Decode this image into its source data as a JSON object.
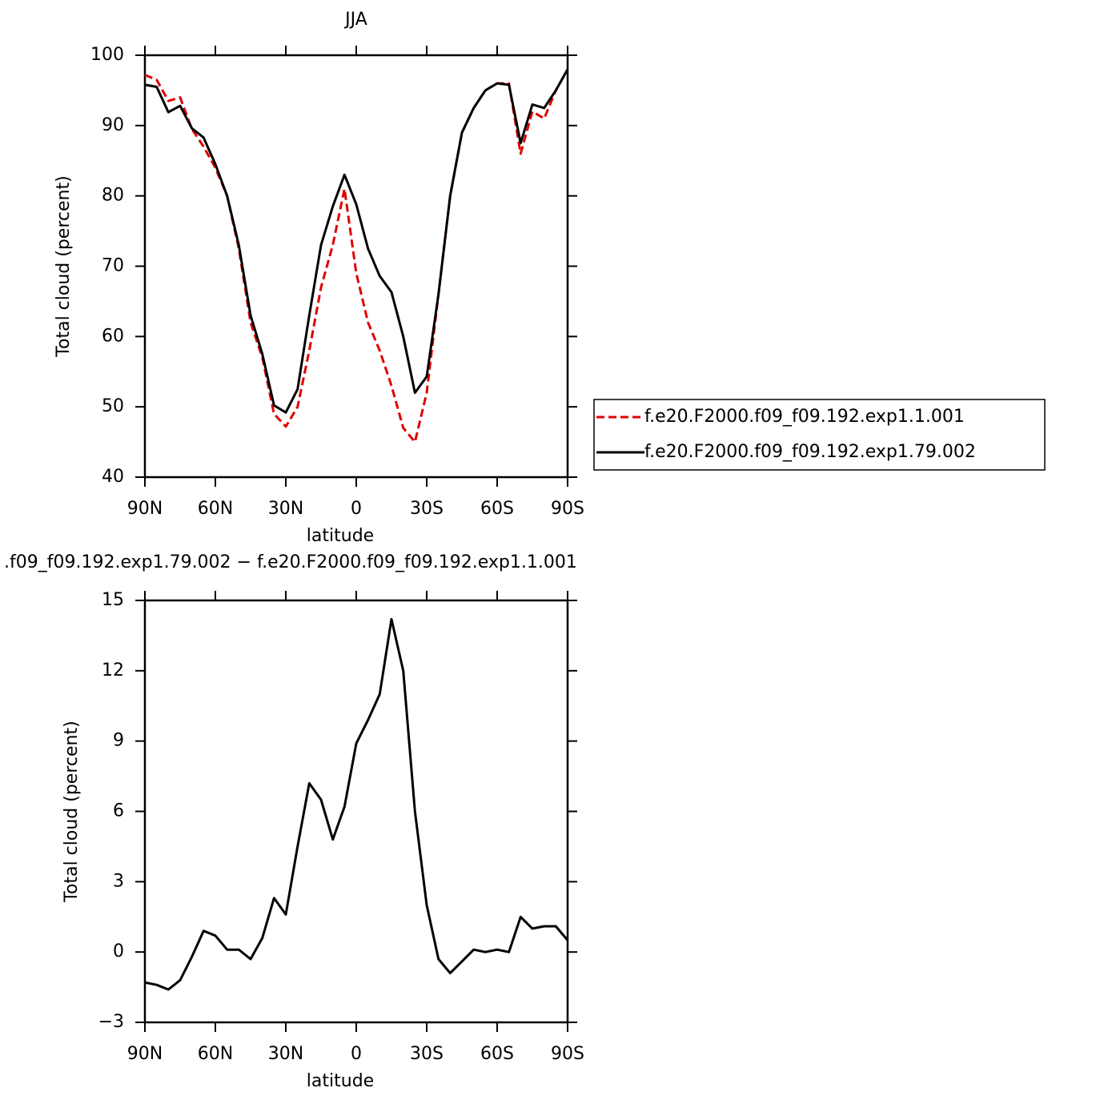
{
  "chart_data": [
    {
      "type": "line",
      "title": "JJA",
      "xlabel": "latitude",
      "ylabel": "Total cloud (percent)",
      "x": [
        90,
        85,
        80,
        75,
        70,
        65,
        60,
        55,
        50,
        45,
        40,
        35,
        30,
        25,
        20,
        15,
        10,
        5,
        0,
        -5,
        -10,
        -15,
        -20,
        -25,
        -30,
        -35,
        -40,
        -45,
        -50,
        -55,
        -60,
        -65,
        -70,
        -75,
        -80,
        -85,
        -90
      ],
      "xlim": [
        90,
        -90
      ],
      "xticks": [
        {
          "value": 90,
          "label": "90N"
        },
        {
          "value": 60,
          "label": "60N"
        },
        {
          "value": 30,
          "label": "30N"
        },
        0,
        {
          "value": -30,
          "label": "30S"
        },
        {
          "value": -60,
          "label": "60S"
        },
        {
          "value": -90,
          "label": "90S"
        }
      ],
      "ylim": [
        40,
        100
      ],
      "yticks": [
        40,
        50,
        60,
        70,
        80,
        90,
        100
      ],
      "legend": "right",
      "series": [
        {
          "name": "f.e20.F2000.f09_f09.192.exp1.1.001",
          "color": "#e00000",
          "dash": true,
          "values": [
            97.2,
            96.5,
            93.5,
            94,
            89.5,
            87,
            84,
            80,
            72.5,
            62,
            57,
            49,
            47.2,
            50,
            58,
            67,
            73,
            81,
            69,
            62,
            58,
            53,
            47,
            45,
            52,
            66,
            80,
            89,
            92.5,
            95,
            96,
            96,
            86,
            92,
            91,
            95,
            98
          ]
        },
        {
          "name": "f.e20.F2000.f09_f09.192.exp1.79.002",
          "color": "#000000",
          "dash": false,
          "values": [
            95.8,
            95.5,
            91.9,
            92.8,
            89.6,
            88.3,
            84.5,
            80,
            73,
            63,
            57.5,
            50.2,
            49.2,
            52.5,
            63,
            73,
            78.5,
            83,
            78.8,
            72.5,
            68.6,
            66.3,
            60,
            52,
            54.3,
            66,
            80,
            89,
            92.5,
            95,
            96,
            95.8,
            87.5,
            93,
            92.5,
            95,
            98
          ]
        }
      ]
    },
    {
      "type": "line",
      "title": ".f09_f09.192.exp1.79.002 − f.e20.F2000.f09_f09.192.exp1.1.001",
      "xlabel": "latitude",
      "ylabel": "Total cloud (percent)",
      "x": [
        90,
        85,
        80,
        75,
        70,
        65,
        60,
        55,
        50,
        45,
        40,
        35,
        30,
        25,
        20,
        15,
        10,
        5,
        0,
        -5,
        -10,
        -15,
        -20,
        -25,
        -30,
        -35,
        -40,
        -45,
        -50,
        -55,
        -60,
        -65,
        -70,
        -75,
        -80,
        -85,
        -90
      ],
      "xlim": [
        90,
        -90
      ],
      "xticks": [
        {
          "value": 90,
          "label": "90N"
        },
        {
          "value": 60,
          "label": "60N"
        },
        {
          "value": 30,
          "label": "30N"
        },
        0,
        {
          "value": -30,
          "label": "30S"
        },
        {
          "value": -60,
          "label": "60S"
        },
        {
          "value": -90,
          "label": "90S"
        }
      ],
      "ylim": [
        -3,
        15
      ],
      "yticks": [
        {
          "value": -3,
          "label": "−3"
        },
        0,
        3,
        6,
        9,
        12,
        15
      ],
      "color": "#000000",
      "values": [
        -1.3,
        -1.4,
        -1.6,
        -1.2,
        -0.2,
        0.9,
        0.7,
        0.1,
        0.1,
        -0.3,
        0.6,
        2.3,
        1.6,
        4.5,
        7.2,
        6.5,
        4.8,
        6.2,
        8.9,
        9.9,
        11,
        14.2,
        12,
        6,
        2,
        -0.3,
        -0.9,
        -0.4,
        0.1,
        0,
        0.1,
        0,
        1.5,
        1,
        1.1,
        1.1,
        0.5
      ]
    }
  ]
}
